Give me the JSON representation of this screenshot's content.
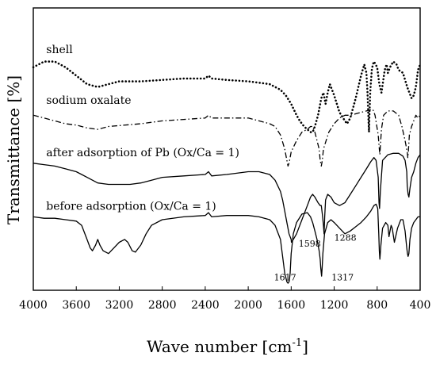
{
  "chart_data": {
    "type": "line",
    "title": "",
    "xlabel": "Wave number [cm",
    "xlabel_sup": "-1",
    "xlabel_close": "]",
    "ylabel": "Transmittance [%]",
    "xlim": [
      4000,
      400
    ],
    "x_reversed": true,
    "x_ticks": [
      "4000",
      "3600",
      "3200",
      "2800",
      "2400",
      "2000",
      "1600",
      "1200",
      "800",
      "400"
    ],
    "y_ticks": [],
    "grid": false,
    "legend": "none",
    "series": [
      {
        "name": "shell",
        "style": "dotted",
        "x": [
          4000,
          3900,
          3800,
          3700,
          3600,
          3500,
          3400,
          3300,
          3200,
          3000,
          2800,
          2600,
          2400,
          2370,
          2340,
          2200,
          2000,
          1900,
          1800,
          1700,
          1650,
          1600,
          1550,
          1520,
          1480,
          1450,
          1420,
          1400,
          1380,
          1350,
          1320,
          1300,
          1280,
          1260,
          1240,
          1200,
          1150,
          1100,
          1080,
          1050,
          1000,
          950,
          920,
          900,
          890,
          880,
          876,
          872,
          865,
          850,
          840,
          830,
          800,
          780,
          760,
          730,
          712,
          700,
          680,
          650,
          620,
          600,
          560,
          520,
          500,
          480,
          460,
          440,
          420,
          400
        ],
        "y": [
          79,
          81,
          81,
          79,
          76,
          73,
          72,
          73,
          74,
          74,
          74.5,
          75,
          75,
          76,
          75,
          74.5,
          74,
          73.5,
          73,
          71,
          69,
          66,
          62,
          60,
          58,
          57,
          56,
          56,
          58,
          62,
          68,
          70,
          66,
          70,
          73,
          69,
          63,
          60,
          59,
          61,
          68,
          76,
          80,
          77,
          70,
          60,
          56,
          62,
          70,
          78,
          80,
          81,
          79,
          73,
          70,
          78,
          80,
          77,
          79,
          81,
          80,
          78,
          77,
          72,
          70,
          68,
          69,
          72,
          78,
          80
        ]
      },
      {
        "name": "sodium oxalate",
        "style": "dashdot",
        "x": [
          4000,
          3900,
          3800,
          3700,
          3600,
          3500,
          3400,
          3300,
          3000,
          2800,
          2600,
          2400,
          2370,
          2340,
          2200,
          2000,
          1900,
          1800,
          1750,
          1700,
          1660,
          1640,
          1630,
          1620,
          1600,
          1550,
          1500,
          1450,
          1420,
          1400,
          1380,
          1340,
          1330,
          1320,
          1310,
          1300,
          1250,
          1200,
          1150,
          1100,
          1050,
          1000,
          950,
          900,
          860,
          840,
          820,
          790,
          780,
          775,
          770,
          760,
          740,
          700,
          650,
          600,
          570,
          540,
          520,
          515,
          510,
          500,
          480,
          460,
          440,
          420,
          400
        ],
        "y": [
          62,
          61,
          60,
          59,
          58.5,
          57.5,
          57,
          58,
          59,
          60,
          60.5,
          61,
          62,
          61,
          61,
          61,
          60,
          59,
          58,
          55,
          50,
          46,
          44,
          45,
          49,
          53,
          56,
          57,
          58,
          58,
          56,
          50,
          46,
          44,
          46,
          50,
          56,
          59,
          61,
          62,
          62,
          62.5,
          63,
          63.5,
          64,
          64,
          62,
          55,
          50,
          48,
          51,
          57,
          62,
          63.5,
          63.5,
          62,
          58,
          53,
          49,
          47,
          49,
          55,
          58,
          60,
          62,
          61,
          62
        ]
      },
      {
        "name": "after adsorption of Pb (Ox/Ca = 1)",
        "style": "solid",
        "x": [
          4000,
          3900,
          3800,
          3700,
          3600,
          3550,
          3500,
          3400,
          3300,
          3200,
          3100,
          3000,
          2900,
          2800,
          2600,
          2400,
          2370,
          2340,
          2200,
          2000,
          1900,
          1800,
          1750,
          1700,
          1680,
          1660,
          1640,
          1620,
          1600,
          1598,
          1580,
          1550,
          1500,
          1450,
          1420,
          1400,
          1380,
          1350,
          1330,
          1320,
          1310,
          1300,
          1294,
          1288,
          1280,
          1260,
          1230,
          1200,
          1150,
          1100,
          1050,
          1000,
          950,
          900,
          860,
          830,
          810,
          790,
          783,
          778,
          770,
          750,
          700,
          650,
          600,
          560,
          540,
          525,
          520,
          512,
          505,
          495,
          480,
          460,
          440,
          420,
          400
        ],
        "y": [
          45,
          44.5,
          44,
          43,
          42,
          41,
          40,
          38,
          37.5,
          37.5,
          37.5,
          38,
          39,
          40,
          40.5,
          41,
          42,
          40.5,
          41,
          42,
          42,
          41,
          39,
          35,
          32,
          28,
          24,
          20,
          18,
          17,
          18,
          20,
          25,
          30,
          33,
          34,
          33,
          31,
          30,
          30,
          27,
          23,
          20,
          26,
          32,
          34,
          33,
          31,
          30,
          31,
          34,
          37,
          40,
          43,
          45.5,
          47,
          46,
          40,
          31,
          29,
          35,
          46,
          48,
          48.5,
          48.5,
          47.5,
          46,
          42,
          37,
          34,
          33,
          36,
          40,
          42,
          45,
          47,
          48
        ]
      },
      {
        "name": "before adsorption (Ox/Ca = 1)",
        "style": "solid",
        "x": [
          4000,
          3900,
          3800,
          3700,
          3600,
          3550,
          3500,
          3470,
          3450,
          3420,
          3400,
          3380,
          3350,
          3300,
          3250,
          3200,
          3150,
          3120,
          3080,
          3050,
          3000,
          2950,
          2900,
          2800,
          2600,
          2400,
          2370,
          2340,
          2200,
          2000,
          1900,
          1800,
          1750,
          1700,
          1680,
          1660,
          1640,
          1630,
          1620,
          1617,
          1610,
          1600,
          1580,
          1550,
          1500,
          1450,
          1420,
          1400,
          1380,
          1360,
          1340,
          1330,
          1325,
          1320,
          1317,
          1312,
          1305,
          1290,
          1260,
          1230,
          1200,
          1150,
          1100,
          1050,
          1000,
          950,
          900,
          860,
          830,
          810,
          795,
          785,
          780,
          775,
          765,
          750,
          720,
          700,
          690,
          680,
          670,
          660,
          640,
          610,
          580,
          560,
          540,
          525,
          518,
          512,
          505,
          495,
          480,
          460,
          440,
          420,
          400
        ],
        "y": [
          26,
          25.5,
          25.5,
          25,
          24.5,
          23,
          18,
          15,
          14,
          16,
          18,
          16,
          14,
          13,
          15,
          17,
          18,
          17,
          14,
          13.5,
          16,
          20,
          23,
          25,
          26,
          26.5,
          27.5,
          26,
          26.5,
          26.5,
          26,
          25,
          23,
          18,
          12,
          6,
          3,
          2.5,
          3,
          3.5,
          6,
          13,
          20,
          24,
          27,
          27.5,
          26,
          24,
          21,
          18,
          14,
          11,
          8,
          6,
          5,
          8,
          13,
          20,
          24,
          25,
          24,
          22,
          20,
          21,
          22.5,
          24,
          26,
          28,
          30,
          30.5,
          29,
          20,
          14,
          11,
          16,
          22,
          24,
          23,
          19,
          21,
          23,
          22,
          17,
          22,
          25,
          25,
          21,
          15,
          13,
          12,
          13,
          18,
          22,
          24,
          25,
          26,
          26
        ]
      }
    ],
    "annotations": [
      {
        "text": "shell",
        "x": 3880,
        "y": 84
      },
      {
        "text": "sodium oxalate",
        "x": 3880,
        "y": 66
      },
      {
        "text": "after adsorption of Pb (Ox/Ca = 1)",
        "x": 3880,
        "y": 47.5
      },
      {
        "text": "before adsorption (Ox/Ca = 1)",
        "x": 3880,
        "y": 28.5
      },
      {
        "text": "1598",
        "x": 1530,
        "y": 15.5
      },
      {
        "text": "1288",
        "x": 1200,
        "y": 17.5
      },
      {
        "text": "1617",
        "x": 1760,
        "y": 3.5
      },
      {
        "text": "1317",
        "x": 1225,
        "y": 3.5
      }
    ]
  }
}
